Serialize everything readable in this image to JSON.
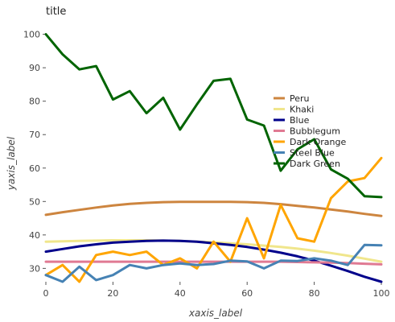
{
  "chart_data": {
    "type": "line",
    "title": "title",
    "xlabel": "xaxis_label",
    "ylabel": "yaxis_label",
    "xlim": [
      0,
      100
    ],
    "ylim": [
      26,
      104
    ],
    "xticks": [
      0,
      20,
      40,
      60,
      80,
      100
    ],
    "yticks": [
      30,
      40,
      50,
      60,
      70,
      80,
      90,
      100
    ],
    "grid": false,
    "legend_position": "right",
    "x": [
      0,
      5,
      10,
      15,
      20,
      25,
      30,
      35,
      40,
      45,
      50,
      55,
      60,
      65,
      70,
      75,
      80,
      85,
      90,
      95,
      100
    ],
    "series": [
      {
        "name": "Peru",
        "color": "#cd853f",
        "values": [
          46,
          46.8,
          47.5,
          48.2,
          48.8,
          49.3,
          49.6,
          49.8,
          49.9,
          49.9,
          49.9,
          49.9,
          49.8,
          49.6,
          49.2,
          48.7,
          48.2,
          47.6,
          47,
          46.3,
          45.7
        ]
      },
      {
        "name": "Khaki",
        "color": "#f0e68c",
        "values": [
          38,
          38.1,
          38.2,
          38.3,
          38.4,
          38.4,
          38.4,
          38.3,
          38.2,
          38,
          37.8,
          37.5,
          37.2,
          36.8,
          36.4,
          35.9,
          35.3,
          34.6,
          33.8,
          32.9,
          32
        ]
      },
      {
        "name": "Blue",
        "color": "#00008b",
        "values": [
          35,
          35.8,
          36.6,
          37.2,
          37.7,
          38,
          38.2,
          38.3,
          38.2,
          38,
          37.5,
          37,
          36.4,
          35.6,
          34.7,
          33.6,
          32.3,
          30.8,
          29.2,
          27.5,
          26
        ]
      },
      {
        "name": "Bubblegum",
        "color": "#e07a93",
        "values": [
          32,
          32,
          32,
          32,
          32,
          32,
          32,
          32,
          32,
          32,
          32,
          32,
          32,
          32,
          32,
          31.9,
          31.8,
          31.7,
          31.6,
          31.4,
          31.2
        ]
      },
      {
        "name": "Dark Orange",
        "color": "#ffa500",
        "values": [
          28,
          31,
          26,
          34,
          35,
          34,
          35,
          31,
          33,
          30,
          38,
          32,
          45,
          33,
          49,
          39,
          38,
          51,
          56,
          57,
          63
        ]
      },
      {
        "name": "Steel Blue",
        "color": "#4682b4",
        "values": [
          28,
          26,
          30.5,
          26.5,
          28,
          31,
          30,
          31,
          31.5,
          31,
          31.3,
          32.3,
          32.1,
          30,
          32.3,
          32.2,
          33,
          32.3,
          31,
          37,
          36.9
        ]
      },
      {
        "name": "Dark Green",
        "color": "#006400",
        "values": [
          100,
          94,
          89.5,
          90.5,
          80.5,
          83,
          76.4,
          81,
          71.5,
          79,
          86.1,
          86.7,
          74.5,
          72.7,
          59.2,
          65.6,
          68.6,
          59.6,
          56.8,
          51.6,
          51.3
        ]
      }
    ]
  }
}
